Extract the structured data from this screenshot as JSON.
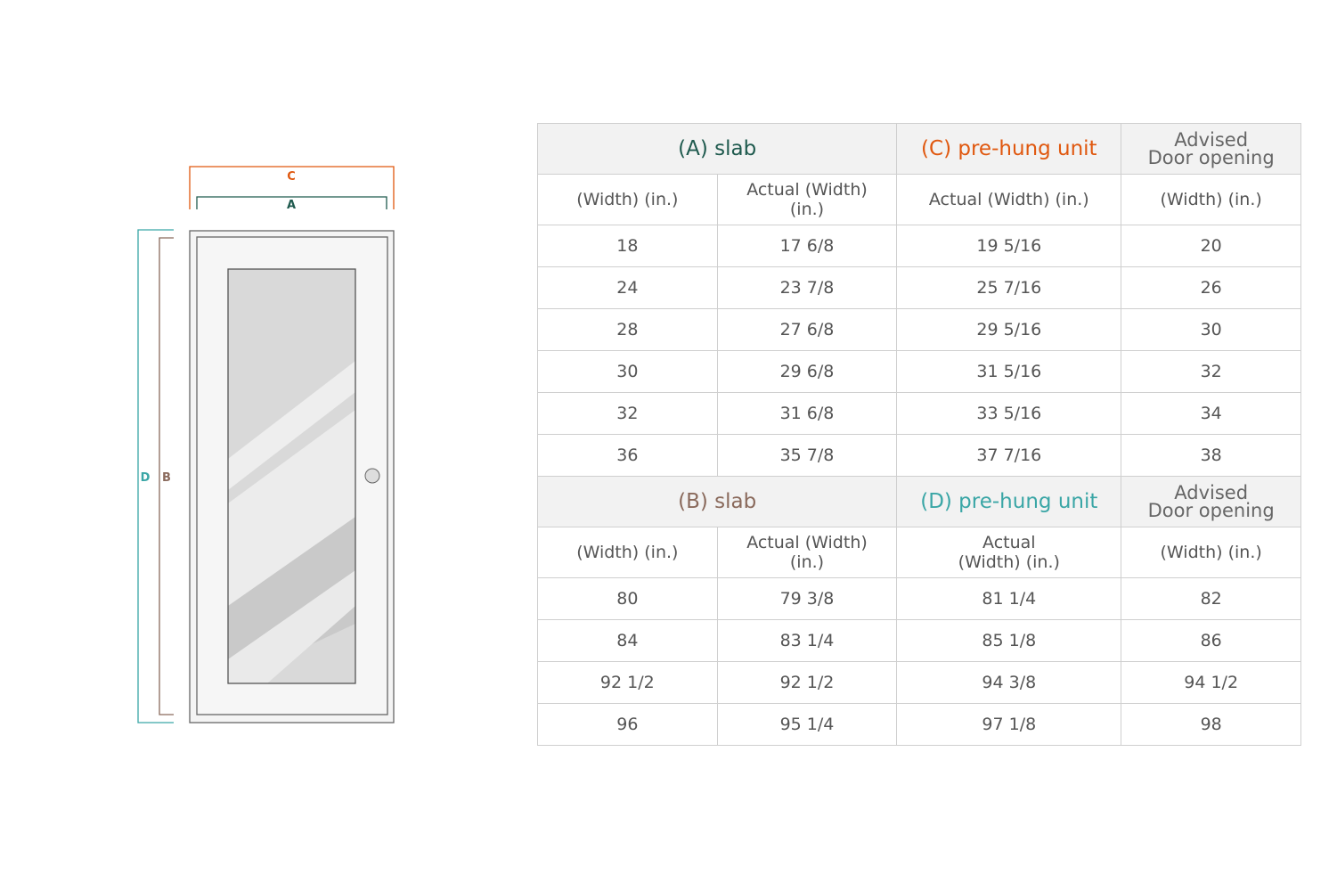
{
  "diagram": {
    "labels": {
      "c": "C",
      "a": "A",
      "d": "D",
      "b": "B"
    },
    "colors": {
      "c": "#e0580f",
      "a": "#1f5a4e",
      "d": "#3aa6a6",
      "b": "#8a6a5c"
    }
  },
  "table1": {
    "title_a": "(A) slab",
    "title_c": "(C) pre-hung unit",
    "title_adv_1": "Advised",
    "title_adv_2": "Door opening",
    "sub": [
      "(Width) (in.)",
      "Actual (Width) (in.)",
      "Actual (Width) (in.)",
      "(Width) (in.)"
    ],
    "rows": [
      [
        "18",
        "17 6/8",
        "19 5/16",
        "20"
      ],
      [
        "24",
        "23 7/8",
        "25 7/16",
        "26"
      ],
      [
        "28",
        "27 6/8",
        "29 5/16",
        "30"
      ],
      [
        "30",
        "29 6/8",
        "31 5/16",
        "32"
      ],
      [
        "32",
        "31 6/8",
        "33 5/16",
        "34"
      ],
      [
        "36",
        "35 7/8",
        "37 7/16",
        "38"
      ]
    ]
  },
  "table2": {
    "title_b": "(B) slab",
    "title_d": "(D) pre-hung unit",
    "title_adv_1": "Advised",
    "title_adv_2": "Door opening",
    "sub": [
      "(Width) (in.)",
      "Actual (Width) (in.)",
      "Actual (Width) (in.)",
      "(Width) (in.)"
    ],
    "rows": [
      [
        "80",
        "79 3/8",
        "81 1/4",
        "82"
      ],
      [
        "84",
        "83 1/4",
        "85 1/8",
        "86"
      ],
      [
        "92 1/2",
        "92 1/2",
        "94 3/8",
        "94 1/2"
      ],
      [
        "96",
        "95 1/4",
        "97 1/8",
        "98"
      ]
    ]
  }
}
